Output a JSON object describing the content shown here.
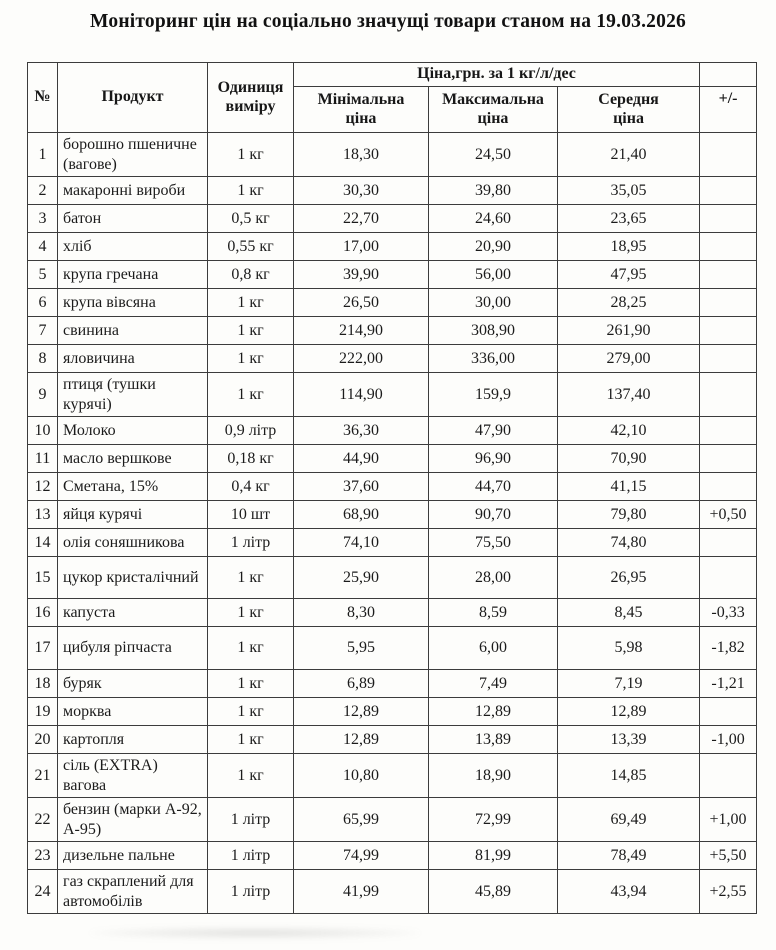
{
  "document": {
    "title": "Моніторинг цін на соціально значущі товари станом на 19.03.2026"
  },
  "table": {
    "header": {
      "number": "№",
      "product": "Продукт",
      "unit": "Одиниця\nвиміру",
      "price_group": "Ціна,грн. за 1 кг/л/дес",
      "min": "Мінімальна\nціна",
      "max": "Максимальна\nціна",
      "avg": "Середня\nціна",
      "delta": "+/-"
    },
    "rows": [
      {
        "no": "1",
        "product": "борошно пшеничне (вагове)",
        "unit": "1 кг",
        "min": "18,30",
        "max": "24,50",
        "avg": "21,40",
        "delta": ""
      },
      {
        "no": "2",
        "product": "макаронні вироби",
        "unit": "1 кг",
        "min": "30,30",
        "max": "39,80",
        "avg": "35,05",
        "delta": ""
      },
      {
        "no": "3",
        "product": "батон",
        "unit": "0,5 кг",
        "min": "22,70",
        "max": "24,60",
        "avg": "23,65",
        "delta": ""
      },
      {
        "no": "4",
        "product": "хліб",
        "unit": "0,55 кг",
        "min": "17,00",
        "max": "20,90",
        "avg": "18,95",
        "delta": ""
      },
      {
        "no": "5",
        "product": "крупа гречана",
        "unit": "0,8 кг",
        "min": "39,90",
        "max": "56,00",
        "avg": "47,95",
        "delta": ""
      },
      {
        "no": "6",
        "product": "крупа вівсяна",
        "unit": "1 кг",
        "min": "26,50",
        "max": "30,00",
        "avg": "28,25",
        "delta": ""
      },
      {
        "no": "7",
        "product": "свинина",
        "unit": "1 кг",
        "min": "214,90",
        "max": "308,90",
        "avg": "261,90",
        "delta": ""
      },
      {
        "no": "8",
        "product": "яловичина",
        "unit": "1 кг",
        "min": "222,00",
        "max": "336,00",
        "avg": "279,00",
        "delta": ""
      },
      {
        "no": "9",
        "product": "птиця (тушки курячі)",
        "unit": "1 кг",
        "min": "114,90",
        "max": "159,9",
        "avg": "137,40",
        "delta": ""
      },
      {
        "no": "10",
        "product": "Молоко",
        "unit": "0,9 літр",
        "min": "36,30",
        "max": "47,90",
        "avg": "42,10",
        "delta": ""
      },
      {
        "no": "11",
        "product": "масло вершкове",
        "unit": "0,18 кг",
        "min": "44,90",
        "max": "96,90",
        "avg": "70,90",
        "delta": ""
      },
      {
        "no": "12",
        "product": "Сметана, 15%",
        "unit": "0,4 кг",
        "min": "37,60",
        "max": "44,70",
        "avg": "41,15",
        "delta": ""
      },
      {
        "no": "13",
        "product": "яйця курячі",
        "unit": "10 шт",
        "min": "68,90",
        "max": "90,70",
        "avg": "79,80",
        "delta": "+0,50"
      },
      {
        "no": "14",
        "product": "олія соняшникова",
        "unit": "1 літр",
        "min": "74,10",
        "max": "75,50",
        "avg": "74,80",
        "delta": ""
      },
      {
        "no": "15",
        "product": "цукор кристалічний",
        "unit": "1 кг",
        "min": "25,90",
        "max": "28,00",
        "avg": "26,95",
        "delta": ""
      },
      {
        "no": "16",
        "product": "капуста",
        "unit": "1 кг",
        "min": "8,30",
        "max": "8,59",
        "avg": "8,45",
        "delta": "-0,33"
      },
      {
        "no": "17",
        "product": "цибуля ріпчаста",
        "unit": "1 кг",
        "min": "5,95",
        "max": "6,00",
        "avg": "5,98",
        "delta": "-1,82"
      },
      {
        "no": "18",
        "product": "буряк",
        "unit": "1 кг",
        "min": "6,89",
        "max": "7,49",
        "avg": "7,19",
        "delta": "-1,21"
      },
      {
        "no": "19",
        "product": "морква",
        "unit": "1 кг",
        "min": "12,89",
        "max": "12,89",
        "avg": "12,89",
        "delta": ""
      },
      {
        "no": "20",
        "product": "картопля",
        "unit": "1 кг",
        "min": "12,89",
        "max": "13,89",
        "avg": "13,39",
        "delta": "-1,00"
      },
      {
        "no": "21",
        "product": "сіль (EXTRA) вагова",
        "unit": "1 кг",
        "min": "10,80",
        "max": "18,90",
        "avg": "14,85",
        "delta": ""
      },
      {
        "no": "22",
        "product": "бензин (марки А-92, А-95)",
        "unit": "1 літр",
        "min": "65,99",
        "max": "72,99",
        "avg": "69,49",
        "delta": "+1,00"
      },
      {
        "no": "23",
        "product": "дизельне пальне",
        "unit": "1 літр",
        "min": "74,99",
        "max": "81,99",
        "avg": "78,49",
        "delta": "+5,50"
      },
      {
        "no": "24",
        "product": "газ скраплений для автомобілів",
        "unit": "1 літр",
        "min": "41,99",
        "max": "45,89",
        "avg": "43,94",
        "delta": "+2,55"
      }
    ]
  }
}
